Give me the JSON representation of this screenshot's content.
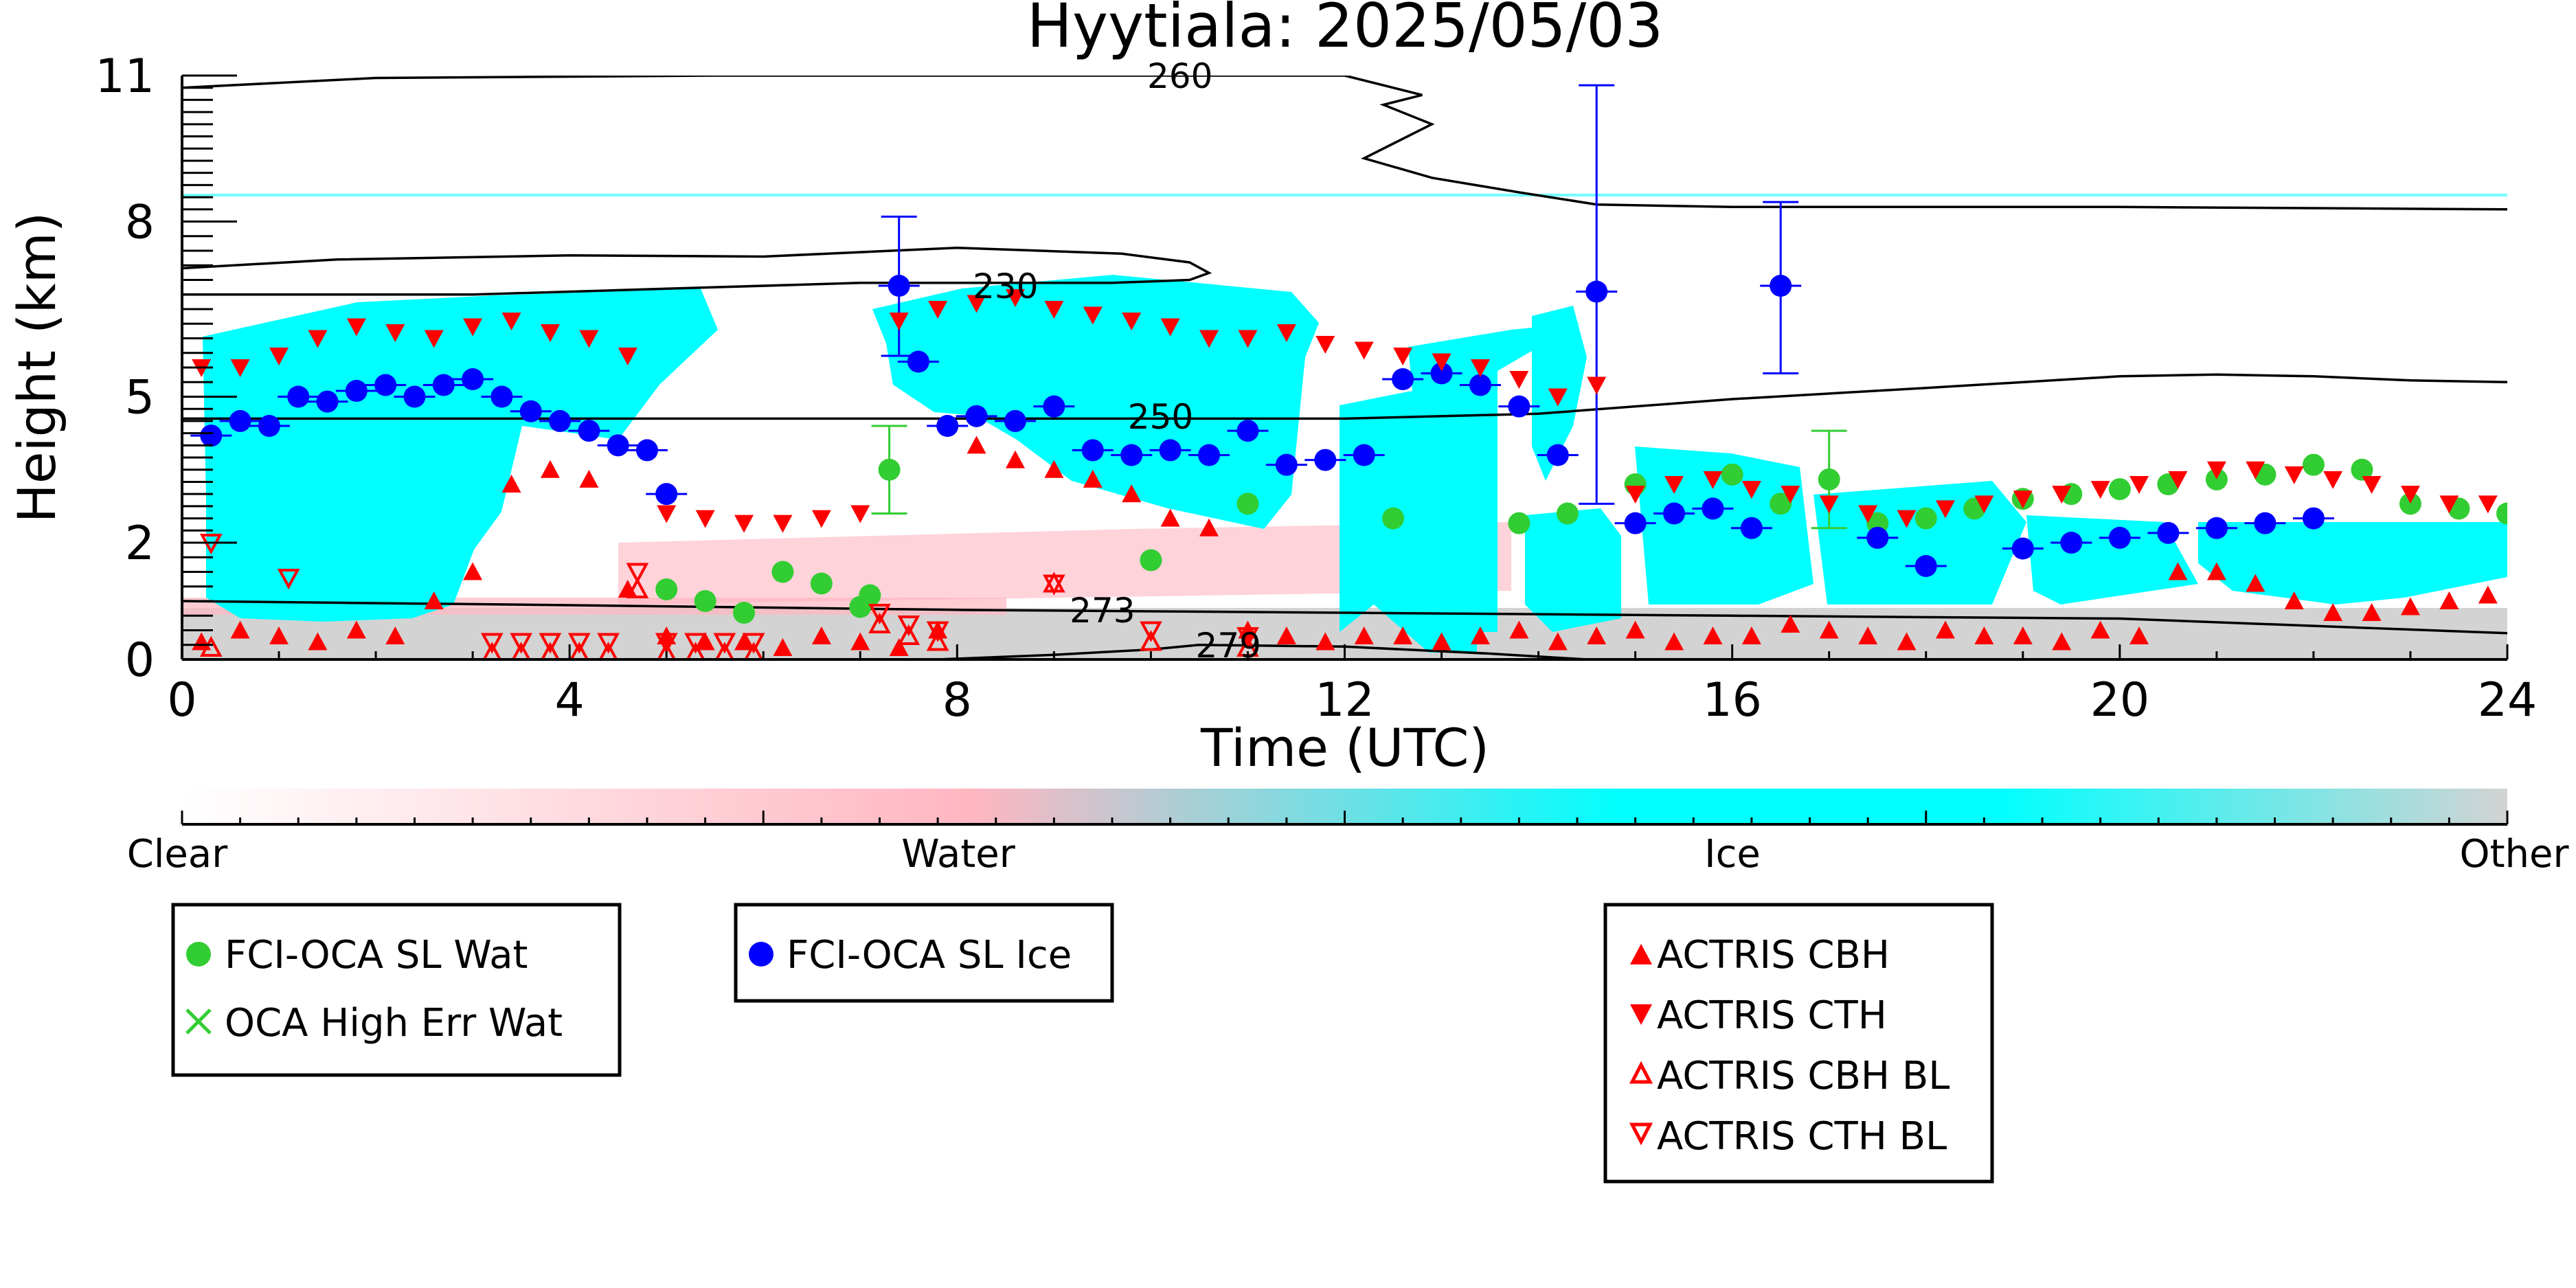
{
  "chart_data": {
    "type": "scatter",
    "title": "Hyytiala: 2025/05/03",
    "xlabel": "Time (UTC)",
    "ylabel": "Height (km)",
    "xlim": [
      0,
      24
    ],
    "ylim": [
      0,
      11
    ],
    "x_ticks": [
      0,
      4,
      8,
      12,
      16,
      20,
      24
    ],
    "y_ticks": [
      0,
      2,
      5,
      8,
      11
    ],
    "y_tick_labels": [
      "0",
      "2",
      "5",
      "8",
      "11"
    ],
    "y_scale": "piecewise-linear",
    "y_tick_positions": [
      0,
      0.2,
      0.45,
      0.75,
      1.0
    ],
    "colorbar": {
      "labels": [
        "Clear",
        "Water",
        "Ice",
        "Other"
      ],
      "colors": [
        "#ffffff",
        "#ffb6c1",
        "#00ffff",
        "#d3d3d3"
      ]
    },
    "contours": [
      {
        "label": "230",
        "x": 8.5,
        "y": 6.9
      },
      {
        "label": "250",
        "x": 10.1,
        "y": 4.6
      },
      {
        "label": "260",
        "x": 10.3,
        "y": 11.0
      },
      {
        "label": "273",
        "x": 9.5,
        "y": 0.85
      },
      {
        "label": "279",
        "x": 10.8,
        "y": 0.25
      }
    ],
    "contour_lines": [
      {
        "label": "230",
        "color": "#000000",
        "x": [
          0,
          1.6,
          4,
          6,
          8,
          9.7,
          10.4,
          10.6,
          10.4,
          9.6,
          7,
          5,
          3,
          0.8,
          0
        ],
        "y": [
          7.2,
          7.35,
          7.42,
          7.4,
          7.55,
          7.45,
          7.3,
          7.12,
          7.0,
          6.95,
          6.95,
          6.85,
          6.75,
          6.75,
          6.75
        ]
      },
      {
        "label": "250",
        "color": "#000000",
        "x": [
          0,
          4,
          8,
          12,
          14,
          16,
          18,
          20,
          21,
          22,
          23,
          24
        ],
        "y": [
          4.55,
          4.55,
          4.55,
          4.55,
          4.65,
          4.95,
          5.15,
          5.35,
          5.38,
          5.35,
          5.28,
          5.25
        ]
      },
      {
        "label": "260",
        "color": "#000000",
        "x": [
          0,
          2,
          5.5,
          8,
          11,
          12,
          12.8,
          12.4,
          12.9,
          12.2,
          12.9,
          13.8,
          14.6,
          16,
          20,
          24
        ],
        "y": [
          10.75,
          10.95,
          11.1,
          11.1,
          11.0,
          11.0,
          10.6,
          10.4,
          10.0,
          9.3,
          8.9,
          8.6,
          8.35,
          8.3,
          8.3,
          8.25
        ]
      },
      {
        "label": "273",
        "color": "#000000",
        "x": [
          0,
          4,
          8,
          12,
          16,
          20,
          24
        ],
        "y": [
          1.0,
          0.93,
          0.85,
          0.8,
          0.75,
          0.7,
          0.45
        ]
      },
      {
        "label": "279",
        "color": "#000000",
        "x": [
          7.8,
          9,
          10,
          10.5,
          12,
          13.5,
          14.5
        ],
        "y": [
          0.0,
          0.08,
          0.17,
          0.25,
          0.22,
          0.1,
          0.0
        ]
      }
    ],
    "series": [
      {
        "name": "FCI-OCA SL Wat",
        "marker": "circle",
        "color": "#32cd32",
        "x": [
          5.0,
          5.4,
          5.8,
          6.2,
          6.6,
          7.0,
          7.1,
          7.3,
          10.0,
          11.0,
          12.5,
          13.8,
          14.3,
          15.0,
          16.0,
          16.5,
          17.0,
          17.5,
          18.0,
          18.5,
          19.0,
          19.5,
          20.0,
          20.5,
          21.0,
          21.5,
          22.0,
          22.5,
          23.0,
          23.5,
          24.0
        ],
        "y": [
          1.2,
          1.0,
          0.8,
          1.5,
          1.3,
          0.9,
          1.1,
          3.5,
          1.7,
          2.8,
          2.5,
          2.4,
          2.6,
          3.2,
          3.4,
          2.8,
          3.3,
          2.4,
          2.5,
          2.7,
          2.9,
          3.0,
          3.1,
          3.2,
          3.3,
          3.4,
          3.6,
          3.5,
          2.8,
          2.7,
          2.6
        ],
        "errors": [
          0,
          0,
          0,
          0,
          0,
          0,
          0,
          0.9,
          0,
          0,
          0,
          0,
          0,
          0,
          0,
          0,
          1.0,
          0,
          0,
          0,
          0,
          0,
          0,
          0,
          0,
          0,
          0,
          0,
          0,
          0,
          0
        ]
      },
      {
        "name": "OCA High Err Wat",
        "marker": "x",
        "color": "#32cd32",
        "x": [],
        "y": []
      },
      {
        "name": "FCI-OCA SL Ice",
        "marker": "circle",
        "color": "#0000ff",
        "x": [
          0.3,
          0.6,
          0.9,
          1.2,
          1.5,
          1.8,
          2.1,
          2.4,
          2.7,
          3.0,
          3.3,
          3.6,
          3.9,
          4.2,
          4.5,
          4.8,
          5.0,
          7.4,
          7.6,
          7.9,
          8.2,
          8.6,
          9.0,
          9.4,
          9.8,
          10.2,
          10.6,
          11.0,
          11.4,
          11.8,
          12.2,
          12.6,
          13.0,
          13.4,
          13.8,
          14.2,
          14.6,
          15.0,
          15.4,
          15.8,
          16.2,
          16.5,
          17.5,
          18.0,
          19.0,
          19.5,
          20.0,
          20.5,
          21.0,
          21.5,
          22.0
        ],
        "y": [
          4.2,
          4.5,
          4.4,
          5.0,
          4.9,
          5.1,
          5.2,
          5.0,
          5.2,
          5.3,
          5.0,
          4.7,
          4.5,
          4.3,
          4.0,
          3.9,
          3.0,
          6.9,
          5.6,
          4.4,
          4.6,
          4.5,
          4.8,
          3.9,
          3.8,
          3.9,
          3.8,
          4.3,
          3.6,
          3.7,
          3.8,
          5.3,
          5.4,
          5.2,
          4.8,
          3.8,
          6.8,
          2.4,
          2.6,
          2.7,
          2.3,
          6.9,
          2.1,
          1.6,
          1.9,
          2.0,
          2.1,
          2.2,
          2.3,
          2.4,
          2.5
        ],
        "errors": [
          0,
          0,
          0,
          0,
          0,
          0,
          0,
          0,
          0,
          0,
          0,
          0,
          0,
          0,
          0,
          0,
          0,
          1.2,
          0,
          0,
          0,
          0,
          0,
          0,
          0,
          0,
          0,
          0,
          0,
          0,
          0,
          0,
          0,
          0,
          0,
          0,
          4.0,
          0,
          0,
          0,
          0,
          1.5,
          0,
          0,
          0,
          0,
          0,
          0,
          0,
          0,
          0
        ]
      },
      {
        "name": "ACTRIS CBH",
        "marker": "triangle-up",
        "color": "#ff0000",
        "x": [
          0.2,
          0.6,
          1.0,
          1.4,
          1.8,
          2.2,
          2.6,
          3.0,
          3.4,
          3.8,
          4.2,
          4.6,
          5.0,
          5.4,
          5.8,
          6.2,
          6.6,
          7.0,
          7.4,
          7.8,
          8.2,
          8.6,
          9.0,
          9.4,
          9.8,
          10.2,
          10.6,
          11.0,
          11.4,
          11.8,
          12.2,
          12.6,
          13.0,
          13.4,
          13.8,
          14.2,
          14.6,
          15.0,
          15.4,
          15.8,
          16.2,
          16.6,
          17.0,
          17.4,
          17.8,
          18.2,
          18.6,
          19.0,
          19.4,
          19.8,
          20.2,
          20.6,
          21.0,
          21.4,
          21.8,
          22.2,
          22.6,
          23.0,
          23.4,
          23.8
        ],
        "y": [
          0.3,
          0.5,
          0.4,
          0.3,
          0.5,
          0.4,
          1.0,
          1.5,
          3.2,
          3.5,
          3.3,
          1.2,
          0.4,
          0.3,
          0.3,
          0.2,
          0.4,
          0.3,
          0.2,
          0.5,
          4.0,
          3.7,
          3.5,
          3.3,
          3.0,
          2.5,
          2.3,
          0.5,
          0.4,
          0.3,
          0.4,
          0.4,
          0.3,
          0.4,
          0.5,
          0.3,
          0.4,
          0.5,
          0.3,
          0.4,
          0.4,
          0.6,
          0.5,
          0.4,
          0.3,
          0.5,
          0.4,
          0.4,
          0.3,
          0.5,
          0.4,
          1.5,
          1.5,
          1.3,
          1.0,
          0.8,
          0.8,
          0.9,
          1.0,
          1.1
        ]
      },
      {
        "name": "ACTRIS CTH",
        "marker": "triangle-down",
        "color": "#ff0000",
        "x": [
          0.2,
          0.6,
          1.0,
          1.4,
          1.8,
          2.2,
          2.6,
          3.0,
          3.4,
          3.8,
          4.2,
          4.6,
          5.0,
          5.4,
          5.8,
          6.2,
          6.6,
          7.0,
          7.4,
          7.8,
          8.2,
          8.6,
          9.0,
          9.4,
          9.8,
          10.2,
          10.6,
          11.0,
          11.4,
          11.8,
          12.2,
          12.6,
          13.0,
          13.4,
          13.8,
          14.2,
          14.6,
          15.0,
          15.4,
          15.8,
          16.2,
          16.6,
          17.0,
          17.4,
          17.8,
          18.2,
          18.6,
          19.0,
          19.4,
          19.8,
          20.2,
          20.6,
          21.0,
          21.4,
          21.8,
          22.2,
          22.6,
          23.0,
          23.4,
          23.8
        ],
        "y": [
          5.5,
          5.5,
          5.7,
          6.0,
          6.2,
          6.1,
          6.0,
          6.2,
          6.3,
          6.1,
          6.0,
          5.7,
          2.6,
          2.5,
          2.4,
          2.4,
          2.5,
          2.6,
          6.3,
          6.5,
          6.6,
          6.7,
          6.5,
          6.4,
          6.3,
          6.2,
          6.0,
          6.0,
          6.1,
          5.9,
          5.8,
          5.7,
          5.6,
          5.5,
          5.3,
          5.0,
          5.2,
          3.0,
          3.2,
          3.3,
          3.1,
          3.0,
          2.8,
          2.6,
          2.5,
          2.7,
          2.8,
          2.9,
          3.0,
          3.1,
          3.2,
          3.3,
          3.5,
          3.5,
          3.4,
          3.3,
          3.2,
          3.0,
          2.8,
          2.8
        ]
      },
      {
        "name": "ACTRIS CBH BL",
        "marker": "triangle-up-open",
        "color": "#ff0000",
        "x": [
          0.3,
          3.2,
          3.5,
          3.8,
          4.1,
          4.4,
          4.7,
          5.0,
          5.3,
          5.6,
          5.9,
          7.2,
          7.5,
          7.8,
          9.0,
          10.0,
          11.0
        ],
        "y": [
          0.2,
          0.1,
          0.1,
          0.1,
          0.1,
          0.1,
          1.2,
          0.1,
          0.1,
          0.1,
          0.1,
          0.6,
          0.4,
          0.3,
          1.3,
          0.3,
          0.2
        ]
      },
      {
        "name": "ACTRIS CTH BL",
        "marker": "triangle-down-open",
        "color": "#ff0000",
        "x": [
          0.3,
          1.1,
          3.2,
          3.5,
          3.8,
          4.1,
          4.4,
          4.7,
          5.0,
          5.3,
          5.6,
          5.9,
          7.2,
          7.5,
          7.8,
          9.0,
          10.0,
          11.0
        ],
        "y": [
          2.0,
          1.4,
          0.3,
          0.3,
          0.3,
          0.3,
          0.3,
          1.5,
          0.3,
          0.3,
          0.3,
          0.3,
          0.8,
          0.6,
          0.5,
          1.3,
          0.5,
          0.4
        ]
      }
    ]
  }
}
